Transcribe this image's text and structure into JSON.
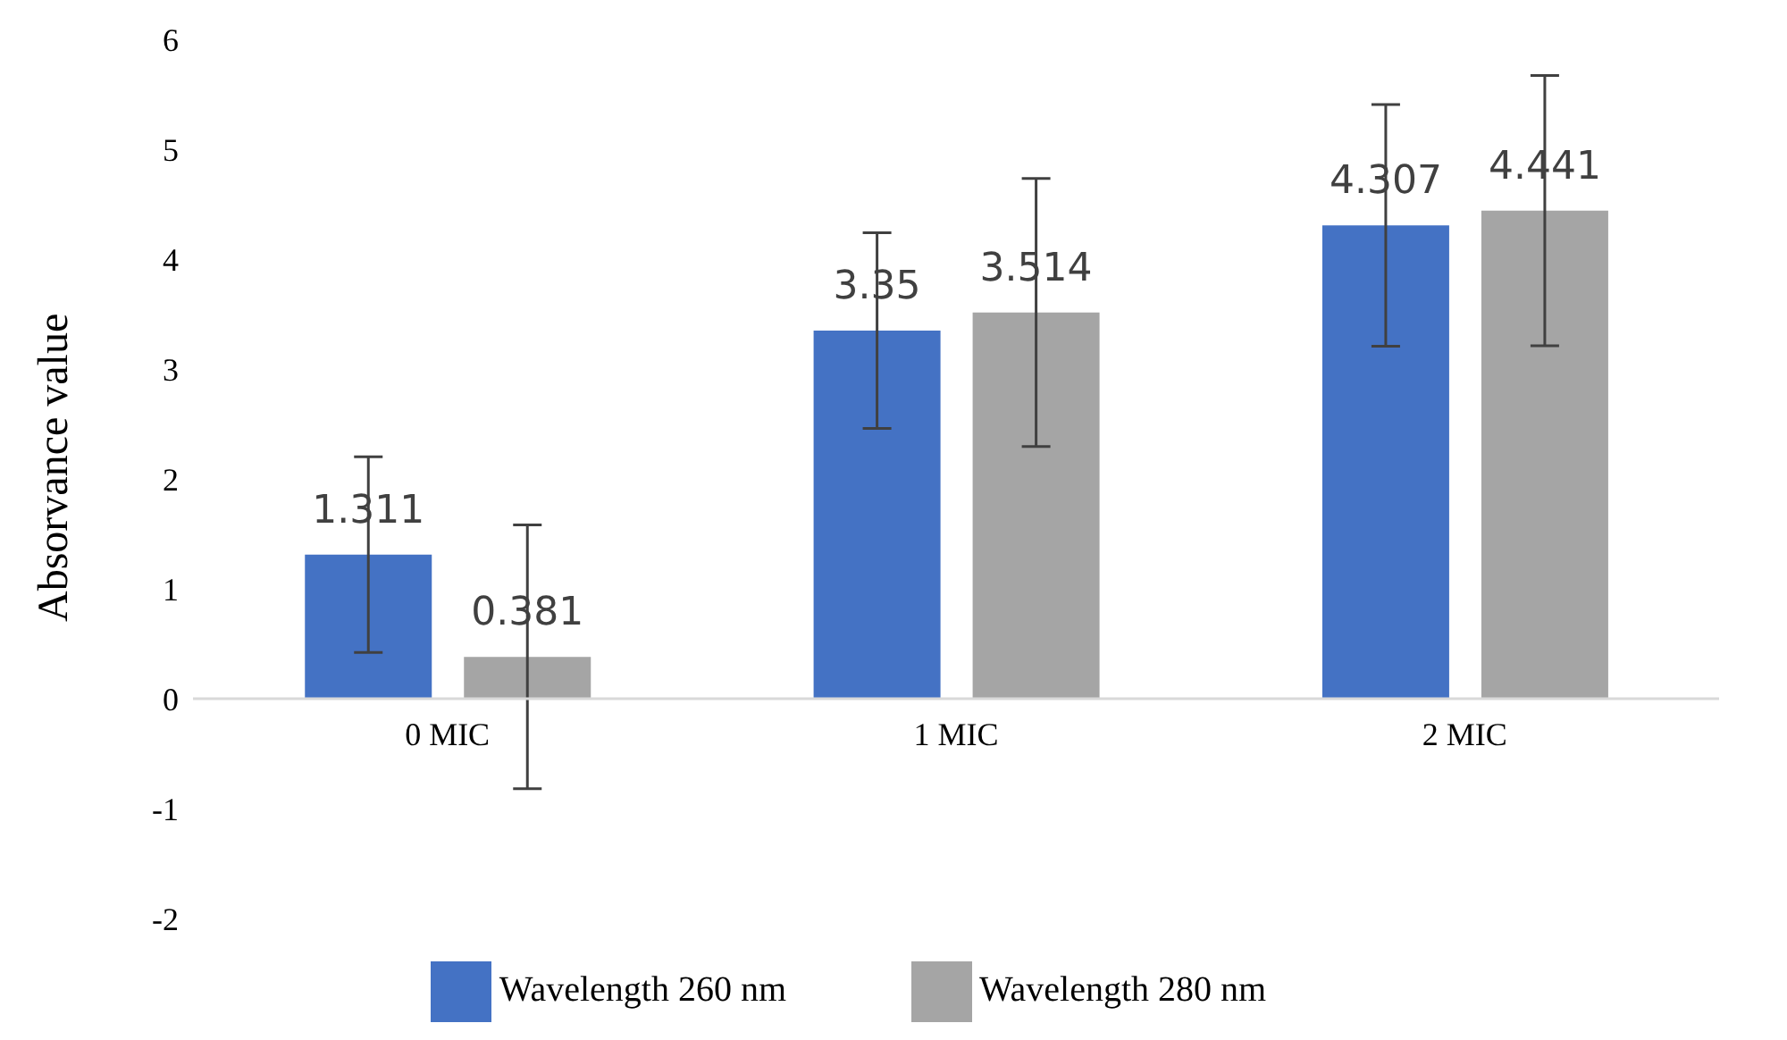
{
  "chart_data": {
    "type": "bar",
    "ylabel": "Absorvance value",
    "categories": [
      "0 MIC",
      "1 MIC",
      "2 MIC"
    ],
    "series": [
      {
        "name": "Wavelength 260 nm",
        "color": "#4472c4",
        "values": [
          1.311,
          3.35,
          4.307
        ],
        "errors": [
          0.89,
          0.89,
          1.1
        ]
      },
      {
        "name": "Wavelength 280 nm",
        "color": "#a5a5a5",
        "values": [
          0.381,
          3.514,
          4.441
        ],
        "errors": [
          1.2,
          1.22,
          1.23
        ]
      }
    ],
    "ylim": [
      -2,
      6
    ],
    "yticks": [
      -2,
      -1,
      0,
      1,
      2,
      3,
      4,
      5,
      6
    ],
    "legend": "bottom",
    "data_labels": true
  }
}
